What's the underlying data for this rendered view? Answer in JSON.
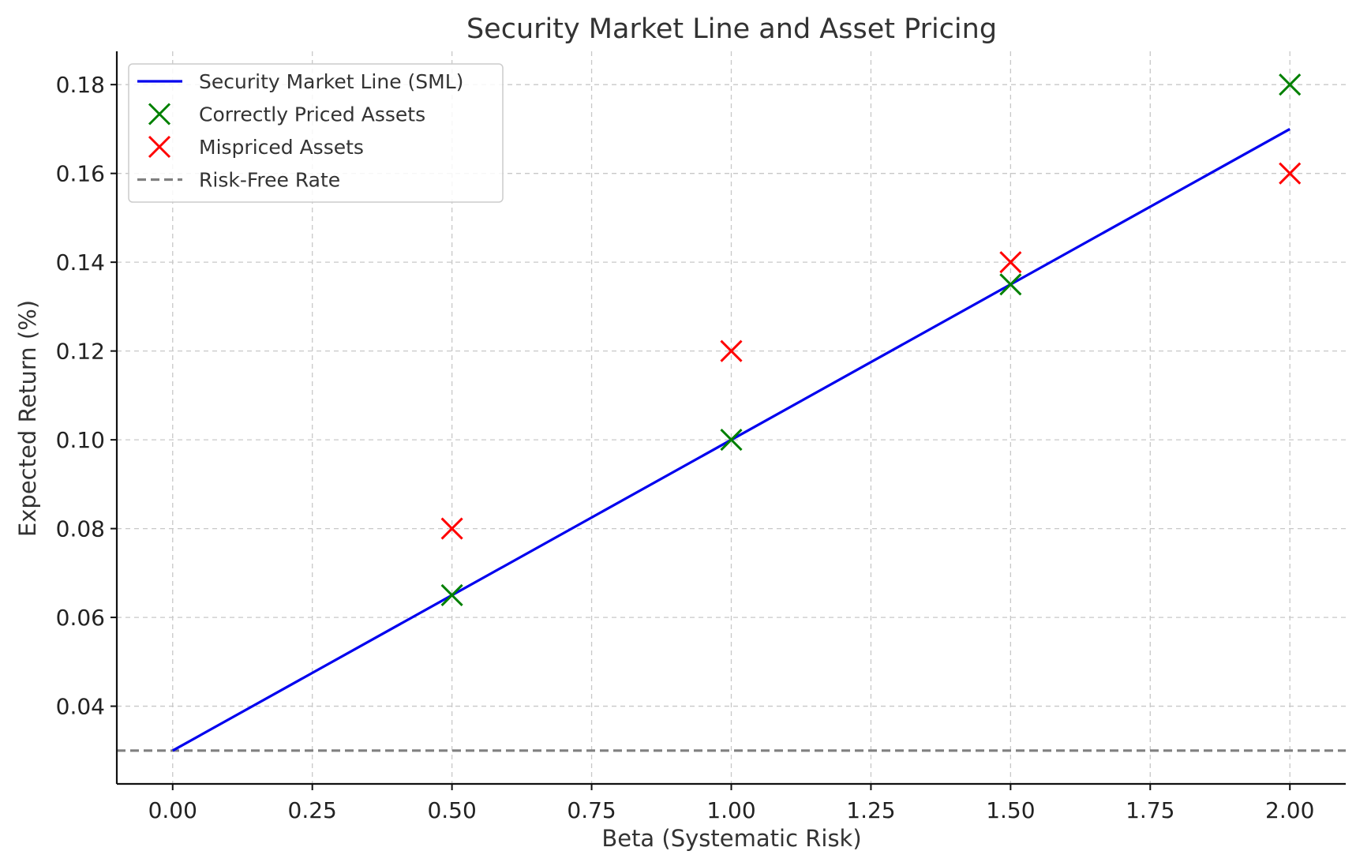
{
  "chart_data": {
    "type": "line",
    "title": "Security Market Line and Asset Pricing",
    "xlabel": "Beta (Systematic Risk)",
    "ylabel": "Expected Return (%)",
    "xlim": [
      -0.1,
      2.1
    ],
    "ylim": [
      0.0225,
      0.1875
    ],
    "xticks": [
      0.0,
      0.25,
      0.5,
      0.75,
      1.0,
      1.25,
      1.5,
      1.75,
      2.0
    ],
    "xtick_labels": [
      "0.00",
      "0.25",
      "0.50",
      "0.75",
      "1.00",
      "1.25",
      "1.50",
      "1.75",
      "2.00"
    ],
    "yticks": [
      0.04,
      0.06,
      0.08,
      0.1,
      0.12,
      0.14,
      0.16,
      0.18
    ],
    "ytick_labels": [
      "0.04",
      "0.06",
      "0.08",
      "0.10",
      "0.12",
      "0.14",
      "0.16",
      "0.18"
    ],
    "grid": true,
    "legend_position": "top-left",
    "series": [
      {
        "name": "Security Market Line (SML)",
        "kind": "line",
        "color": "#0000ee",
        "x": [
          0.0,
          2.0
        ],
        "y": [
          0.03,
          0.17
        ]
      },
      {
        "name": "Correctly Priced Assets",
        "kind": "scatter-x",
        "color": "#008000",
        "x": [
          0.5,
          1.0,
          1.5,
          2.0
        ],
        "y": [
          0.065,
          0.1,
          0.135,
          0.18
        ]
      },
      {
        "name": "Mispriced Assets",
        "kind": "scatter-x",
        "color": "#ff0000",
        "x": [
          0.5,
          1.0,
          1.5,
          2.0
        ],
        "y": [
          0.08,
          0.12,
          0.14,
          0.16
        ]
      },
      {
        "name": "Risk-Free Rate",
        "kind": "hline",
        "color": "#808080",
        "y": 0.03
      }
    ]
  }
}
